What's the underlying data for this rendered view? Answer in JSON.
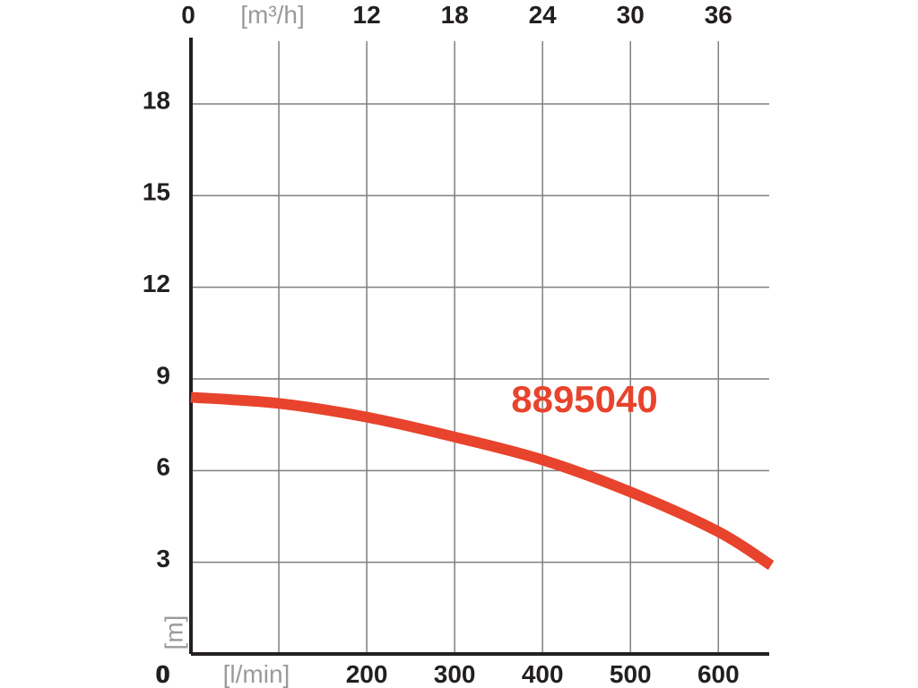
{
  "chart_data": {
    "type": "line",
    "ylabel": "[m]",
    "xlabel": "[l/min]",
    "top_axis_label": "[m³/h]",
    "ylim": [
      0,
      20
    ],
    "xlim": [
      0,
      665
    ],
    "grid": true,
    "x_ticks_bottom": [
      {
        "value": 0,
        "label": "0"
      },
      {
        "value": 200,
        "label": "200"
      },
      {
        "value": 300,
        "label": "300"
      },
      {
        "value": 400,
        "label": "400"
      },
      {
        "value": 500,
        "label": "500"
      },
      {
        "value": 600,
        "label": "600"
      }
    ],
    "x_ticks_top": [
      {
        "value": 0,
        "label": "0"
      },
      {
        "value": 200,
        "label": "12"
      },
      {
        "value": 300,
        "label": "18"
      },
      {
        "value": 400,
        "label": "24"
      },
      {
        "value": 500,
        "label": "30"
      },
      {
        "value": 600,
        "label": "36"
      }
    ],
    "y_ticks": [
      {
        "value": 0,
        "label": "0"
      },
      {
        "value": 3,
        "label": "3"
      },
      {
        "value": 6,
        "label": "6"
      },
      {
        "value": 9,
        "label": "9"
      },
      {
        "value": 12,
        "label": "12"
      },
      {
        "value": 15,
        "label": "15"
      },
      {
        "value": 18,
        "label": "18"
      }
    ],
    "vertical_grid_x": [
      100,
      200,
      300,
      400,
      500,
      600
    ],
    "series": [
      {
        "name": "8895040",
        "color": "#e8432c",
        "points": [
          {
            "x": 0,
            "y": 8.4
          },
          {
            "x": 100,
            "y": 8.2
          },
          {
            "x": 200,
            "y": 7.75
          },
          {
            "x": 300,
            "y": 7.1
          },
          {
            "x": 400,
            "y": 6.35
          },
          {
            "x": 500,
            "y": 5.3
          },
          {
            "x": 600,
            "y": 4.0
          },
          {
            "x": 660,
            "y": 2.9
          }
        ]
      }
    ]
  }
}
